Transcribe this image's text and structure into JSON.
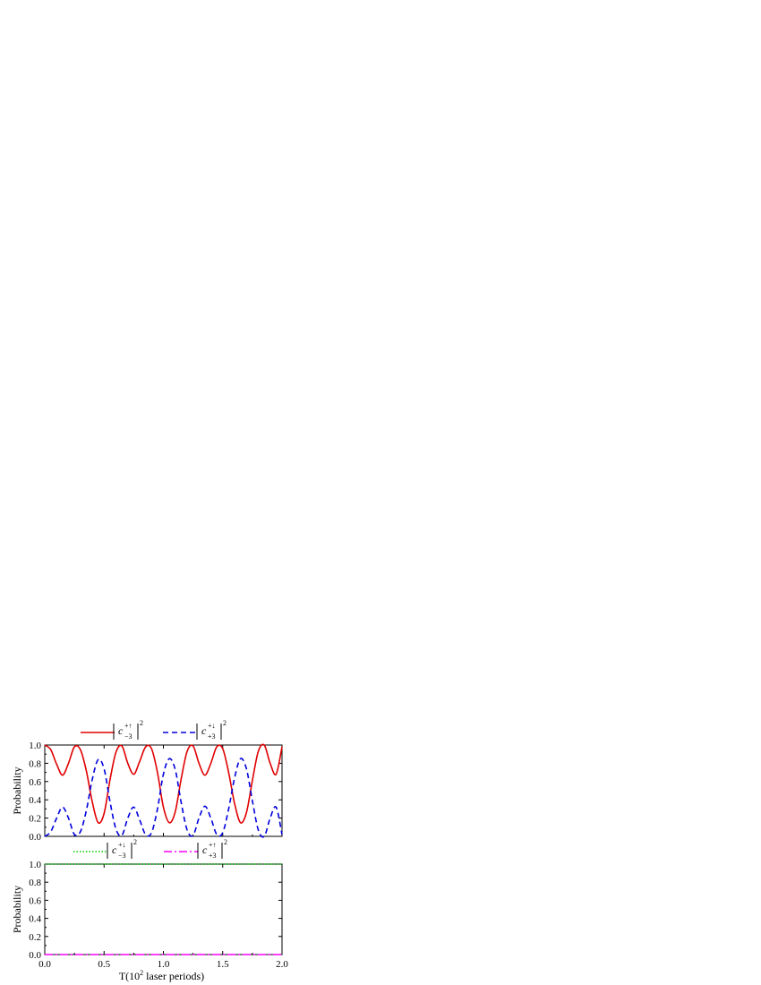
{
  "chart_data": [
    {
      "type": "line",
      "panel": "top",
      "ylabel": "Probability",
      "xlim": [
        0.0,
        2.0
      ],
      "ylim": [
        0.0,
        1.0
      ],
      "xticks": [
        "0.0",
        "0.5",
        "1.0",
        "1.5",
        "2.0"
      ],
      "show_x_tick_labels": false,
      "yticks": [
        "0.0",
        "0.2",
        "0.4",
        "0.6",
        "0.8",
        "1.0"
      ],
      "legend_position": "top",
      "series": [
        {
          "name": "c_{-3}^{+↑}",
          "legend_base": "c",
          "legend_sub": "−3",
          "legend_sup": "+↑",
          "legend_power": "2",
          "color": "#e00000",
          "style": "solid",
          "x": [
            0.0,
            0.05,
            0.1,
            0.15,
            0.2,
            0.25,
            0.3,
            0.35,
            0.4,
            0.45,
            0.5,
            0.55,
            0.6,
            0.65,
            0.7,
            0.75,
            0.8,
            0.85,
            0.9,
            0.95,
            1.0,
            1.05,
            1.1,
            1.15,
            1.2,
            1.25,
            1.3,
            1.35,
            1.4,
            1.45,
            1.5,
            1.55,
            1.6,
            1.65,
            1.7,
            1.75,
            1.8,
            1.85,
            1.9,
            1.95,
            2.0
          ],
          "y": [
            1.0,
            0.95,
            0.79,
            0.67,
            0.8,
            0.98,
            0.95,
            0.72,
            0.38,
            0.15,
            0.25,
            0.62,
            0.92,
            0.99,
            0.8,
            0.68,
            0.82,
            0.98,
            0.96,
            0.7,
            0.32,
            0.15,
            0.27,
            0.63,
            0.93,
            0.99,
            0.8,
            0.67,
            0.8,
            0.98,
            0.96,
            0.7,
            0.36,
            0.15,
            0.26,
            0.61,
            0.93,
            1.0,
            0.8,
            0.68,
            0.98
          ]
        },
        {
          "name": "c_{+3}^{+↓}",
          "legend_base": "c",
          "legend_sub": "+3",
          "legend_sup": "+↓",
          "legend_power": "2",
          "color": "#0000dd",
          "style": "dashed",
          "x": [
            0.0,
            0.05,
            0.1,
            0.15,
            0.2,
            0.25,
            0.3,
            0.35,
            0.4,
            0.45,
            0.5,
            0.55,
            0.6,
            0.65,
            0.7,
            0.75,
            0.8,
            0.85,
            0.9,
            0.95,
            1.0,
            1.05,
            1.1,
            1.15,
            1.2,
            1.25,
            1.3,
            1.35,
            1.4,
            1.45,
            1.5,
            1.55,
            1.6,
            1.65,
            1.7,
            1.75,
            1.8,
            1.85,
            1.9,
            1.95,
            2.0
          ],
          "y": [
            0.0,
            0.05,
            0.2,
            0.32,
            0.2,
            0.02,
            0.05,
            0.28,
            0.62,
            0.84,
            0.74,
            0.38,
            0.08,
            0.01,
            0.2,
            0.32,
            0.18,
            0.02,
            0.04,
            0.3,
            0.68,
            0.85,
            0.73,
            0.37,
            0.07,
            0.01,
            0.2,
            0.33,
            0.2,
            0.02,
            0.04,
            0.3,
            0.64,
            0.85,
            0.74,
            0.39,
            0.07,
            0.0,
            0.2,
            0.32,
            0.02
          ]
        }
      ]
    },
    {
      "type": "line",
      "panel": "bottom",
      "xlabel": "T(10",
      "xlabel_sup": "2",
      "xlabel_rest": " laser periods)",
      "ylabel": "Probability",
      "xlim": [
        0.0,
        2.0
      ],
      "ylim": [
        0.0,
        1.0
      ],
      "xticks": [
        "0.0",
        "0.5",
        "1.0",
        "1.5",
        "2.0"
      ],
      "show_x_tick_labels": true,
      "yticks": [
        "0.0",
        "0.2",
        "0.4",
        "0.6",
        "0.8",
        "1.0"
      ],
      "legend_position": "top",
      "series": [
        {
          "name": "c_{-3}^{+↓}",
          "legend_base": "c",
          "legend_sub": "−3",
          "legend_sup": "+↓",
          "legend_power": "2",
          "color": "#00cc00",
          "style": "dotted",
          "x": [
            0.0,
            2.0
          ],
          "y": [
            1.0,
            1.0
          ]
        },
        {
          "name": "c_{+3}^{+↑}",
          "legend_base": "c",
          "legend_sub": "+3",
          "legend_sup": "+↑",
          "legend_power": "2",
          "color": "#ff00ff",
          "style": "dashdot",
          "x": [
            0.0,
            2.0
          ],
          "y": [
            0.0,
            0.0
          ]
        }
      ]
    }
  ]
}
